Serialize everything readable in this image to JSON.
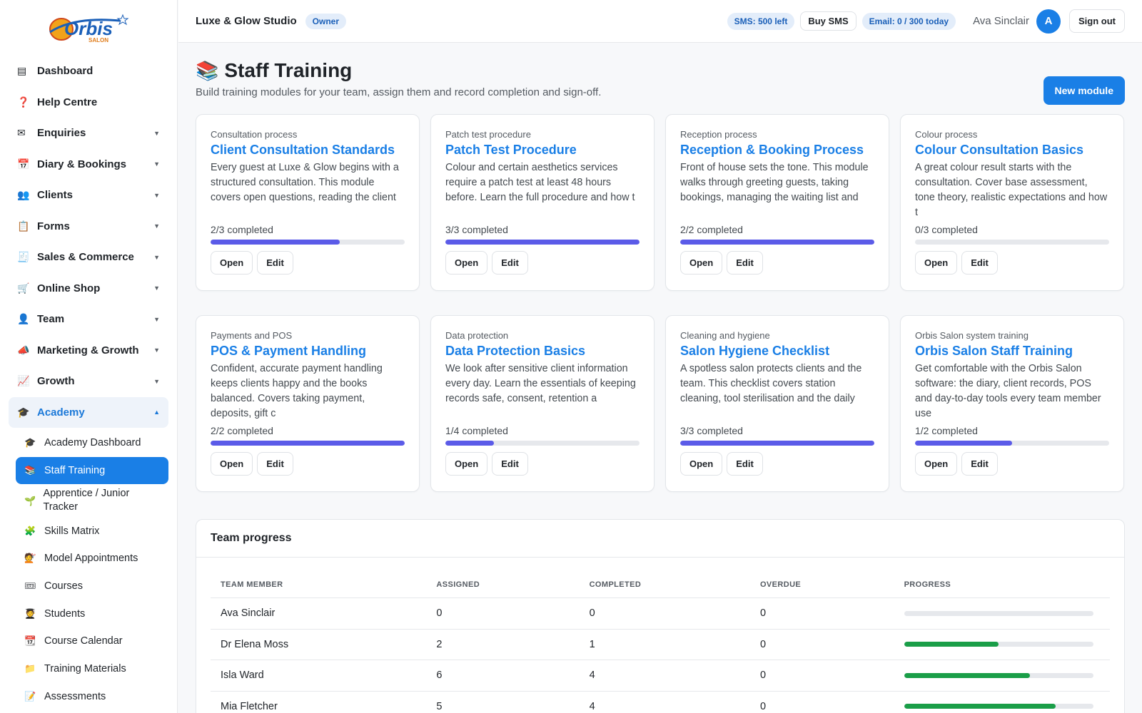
{
  "brand": {
    "logo_text": "Orbis",
    "logo_sub": "SALON"
  },
  "sidebar": {
    "items": [
      {
        "label": "Dashboard",
        "icon": "▤",
        "caret": ""
      },
      {
        "label": "Help Centre",
        "icon": "❓",
        "caret": ""
      },
      {
        "label": "Enquiries",
        "icon": "✉",
        "caret": "▼"
      },
      {
        "label": "Diary & Bookings",
        "icon": "📅",
        "caret": "▼"
      },
      {
        "label": "Clients",
        "icon": "👥",
        "caret": "▼"
      },
      {
        "label": "Forms",
        "icon": "📋",
        "caret": "▼"
      },
      {
        "label": "Sales & Commerce",
        "icon": "🧾",
        "caret": "▼"
      },
      {
        "label": "Online Shop",
        "icon": "🛒",
        "caret": "▼"
      },
      {
        "label": "Team",
        "icon": "👤",
        "caret": "▼"
      },
      {
        "label": "Marketing & Growth",
        "icon": "📣",
        "caret": "▼"
      },
      {
        "label": "Growth",
        "icon": "📈",
        "caret": "▼"
      },
      {
        "label": "Academy",
        "icon": "🎓",
        "caret": "▲"
      }
    ],
    "academy_sub": [
      {
        "label": "Academy Dashboard",
        "icon": "🎓"
      },
      {
        "label": "Staff Training",
        "icon": "📚"
      },
      {
        "label": "Apprentice / Junior Tracker",
        "icon": "🌱"
      },
      {
        "label": "Skills Matrix",
        "icon": "🧩"
      },
      {
        "label": "Model Appointments",
        "icon": "💇"
      },
      {
        "label": "Courses",
        "icon": "🎟"
      },
      {
        "label": "Students",
        "icon": "🧑‍🎓"
      },
      {
        "label": "Course Calendar",
        "icon": "📆"
      },
      {
        "label": "Training Materials",
        "icon": "📁"
      },
      {
        "label": "Assessments",
        "icon": "📝"
      }
    ]
  },
  "header": {
    "studio": "Luxe & Glow Studio",
    "role": "Owner",
    "sms": "SMS: 500 left",
    "buy_sms": "Buy SMS",
    "email": "Email: 0 / 300 today",
    "user": "Ava Sinclair",
    "avatar_initial": "A",
    "sign_out": "Sign out"
  },
  "page": {
    "icon": "📚",
    "title": "Staff Training",
    "subtitle": "Build training modules for your team, assign them and record completion and sign-off.",
    "new_button": "New module"
  },
  "modules": [
    {
      "category": "Consultation process",
      "title": "Client Consultation Standards",
      "desc": "Every guest at Luxe & Glow begins with a structured consultation. This module covers open questions, reading the client",
      "progress_text": "2/3 completed",
      "progress": 0.667,
      "open": "Open",
      "edit": "Edit"
    },
    {
      "category": "Patch test procedure",
      "title": "Patch Test Procedure",
      "desc": "Colour and certain aesthetics services require a patch test at least 48 hours before. Learn the full procedure and how t",
      "progress_text": "3/3 completed",
      "progress": 1.0,
      "open": "Open",
      "edit": "Edit"
    },
    {
      "category": "Reception process",
      "title": "Reception & Booking Process",
      "desc": "Front of house sets the tone. This module walks through greeting guests, taking bookings, managing the waiting list and",
      "progress_text": "2/2 completed",
      "progress": 1.0,
      "open": "Open",
      "edit": "Edit"
    },
    {
      "category": "Colour process",
      "title": "Colour Consultation Basics",
      "desc": "A great colour result starts with the consultation. Cover base assessment, tone theory, realistic expectations and how t",
      "progress_text": "0/3 completed",
      "progress": 0.0,
      "open": "Open",
      "edit": "Edit"
    },
    {
      "category": "Payments and POS",
      "title": "POS & Payment Handling",
      "desc": "Confident, accurate payment handling keeps clients happy and the books balanced. Covers taking payment, deposits, gift c",
      "progress_text": "2/2 completed",
      "progress": 1.0,
      "open": "Open",
      "edit": "Edit"
    },
    {
      "category": "Data protection",
      "title": "Data Protection Basics",
      "desc": "We look after sensitive client information every day. Learn the essentials of keeping records safe, consent, retention a",
      "progress_text": "1/4 completed",
      "progress": 0.25,
      "open": "Open",
      "edit": "Edit"
    },
    {
      "category": "Cleaning and hygiene",
      "title": "Salon Hygiene Checklist",
      "desc": "A spotless salon protects clients and the team. This checklist covers station cleaning, tool sterilisation and the daily",
      "progress_text": "3/3 completed",
      "progress": 1.0,
      "open": "Open",
      "edit": "Edit"
    },
    {
      "category": "Orbis Salon system training",
      "title": "Orbis Salon Staff Training",
      "desc": "Get comfortable with the Orbis Salon software: the diary, client records, POS and day-to-day tools every team member use",
      "progress_text": "1/2 completed",
      "progress": 0.5,
      "open": "Open",
      "edit": "Edit"
    }
  ],
  "team_progress": {
    "title": "Team progress",
    "columns": [
      "TEAM MEMBER",
      "ASSIGNED",
      "COMPLETED",
      "OVERDUE",
      "PROGRESS"
    ],
    "rows": [
      {
        "member": "Ava Sinclair",
        "assigned": "0",
        "completed": "0",
        "overdue": "0",
        "progress": 0.0
      },
      {
        "member": "Dr Elena Moss",
        "assigned": "2",
        "completed": "1",
        "overdue": "0",
        "progress": 0.5
      },
      {
        "member": "Isla Ward",
        "assigned": "6",
        "completed": "4",
        "overdue": "0",
        "progress": 0.667
      },
      {
        "member": "Mia Fletcher",
        "assigned": "5",
        "completed": "4",
        "overdue": "0",
        "progress": 0.8
      }
    ]
  },
  "colors": {
    "accent": "#1a7fe6",
    "module_bar": "#5b5be8",
    "team_bar": "#1a9e48"
  }
}
